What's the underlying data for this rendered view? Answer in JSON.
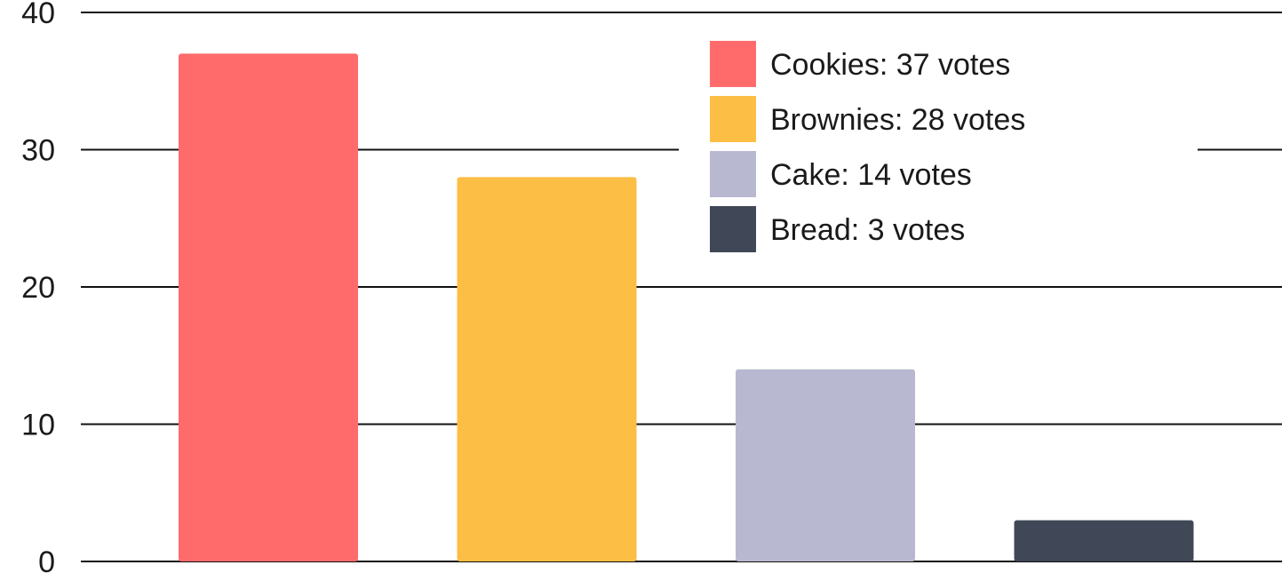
{
  "chart_data": {
    "type": "bar",
    "categories": [
      "Cookies",
      "Brownies",
      "Cake",
      "Bread"
    ],
    "values": [
      37,
      28,
      14,
      3
    ],
    "colors": [
      "#ff6b6b",
      "#fcbe45",
      "#b8b8d0",
      "#404756"
    ],
    "ylim": [
      0,
      40
    ],
    "yticks": [
      0,
      10,
      20,
      30,
      40
    ],
    "grid": true,
    "legend": {
      "placement": "top-right",
      "entries": [
        "Cookies: 37 votes",
        "Brownies: 28 votes",
        "Cake: 14 votes",
        "Bread: 3 votes"
      ]
    }
  }
}
